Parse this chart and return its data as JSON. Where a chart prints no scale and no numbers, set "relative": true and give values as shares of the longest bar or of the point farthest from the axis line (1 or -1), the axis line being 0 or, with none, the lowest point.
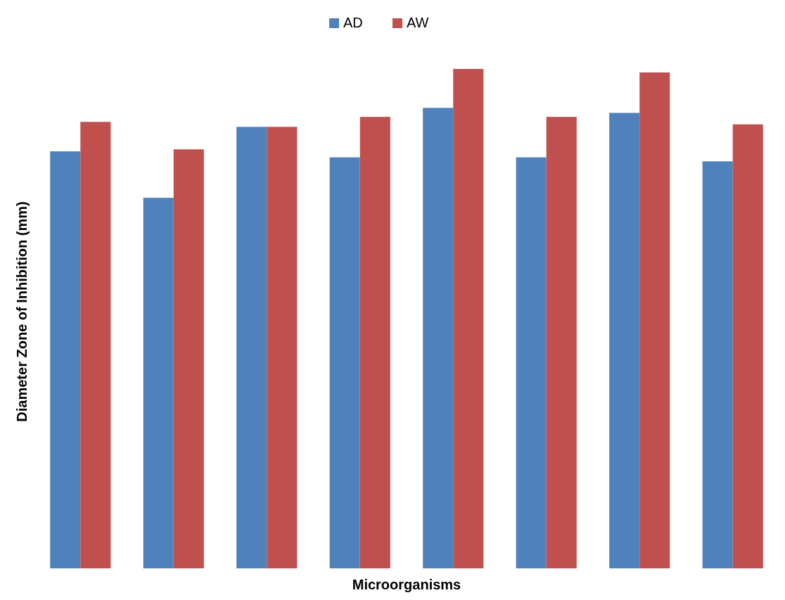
{
  "chart_data": {
    "type": "bar",
    "relative": true,
    "xlabel": "Microorganisms",
    "ylabel": "Diameter Zone of Inhibition (mm)",
    "categories": [
      null,
      null,
      null,
      null,
      null,
      null,
      null,
      null
    ],
    "legend": "top",
    "series": [
      {
        "name": "AD",
        "color": "#4f81bd",
        "values": [
          0.835,
          0.742,
          0.884,
          0.823,
          0.922,
          0.823,
          0.912,
          0.815
        ]
      },
      {
        "name": "AW",
        "color": "#c0504d",
        "values": [
          0.894,
          0.839,
          0.884,
          0.904,
          1,
          0.904,
          0.993,
          0.889
        ]
      }
    ]
  }
}
